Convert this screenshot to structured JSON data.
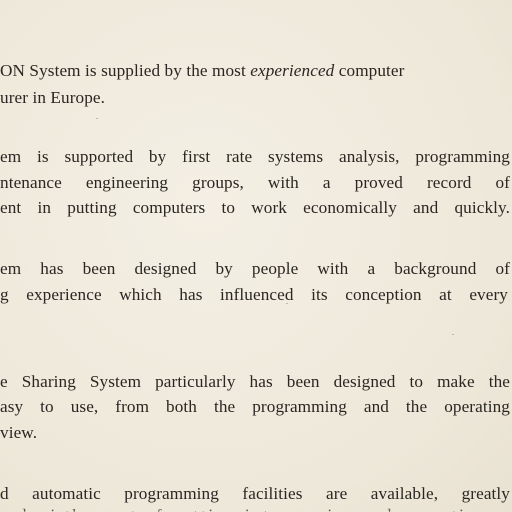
{
  "paragraphs": [
    {
      "lines": [
        {
          "pre": "ON System is supplied by the most ",
          "em": "experienced",
          "post": " computer"
        },
        {
          "text": "urer in Europe."
        }
      ]
    },
    {
      "lines": [
        {
          "text": "em is supported by first rate systems analysis, programming"
        },
        {
          "text": "ntenance engineering groups, with a proved record of"
        },
        {
          "text": "ent in putting computers to work economically and quickly."
        }
      ]
    },
    {
      "lines": [
        {
          "text": "em has been designed by people with a background of"
        },
        {
          "text": "g experience which has influenced its conception at every"
        }
      ]
    },
    {
      "lines": [
        {
          "text": "e Sharing System particularly has been designed to make the"
        },
        {
          "text": "asy to use, from both the programming and the operating"
        },
        {
          "text": " view."
        }
      ]
    },
    {
      "lines": [
        {
          "text": "d automatic programming facilities are available, greatly"
        }
      ]
    }
  ]
}
